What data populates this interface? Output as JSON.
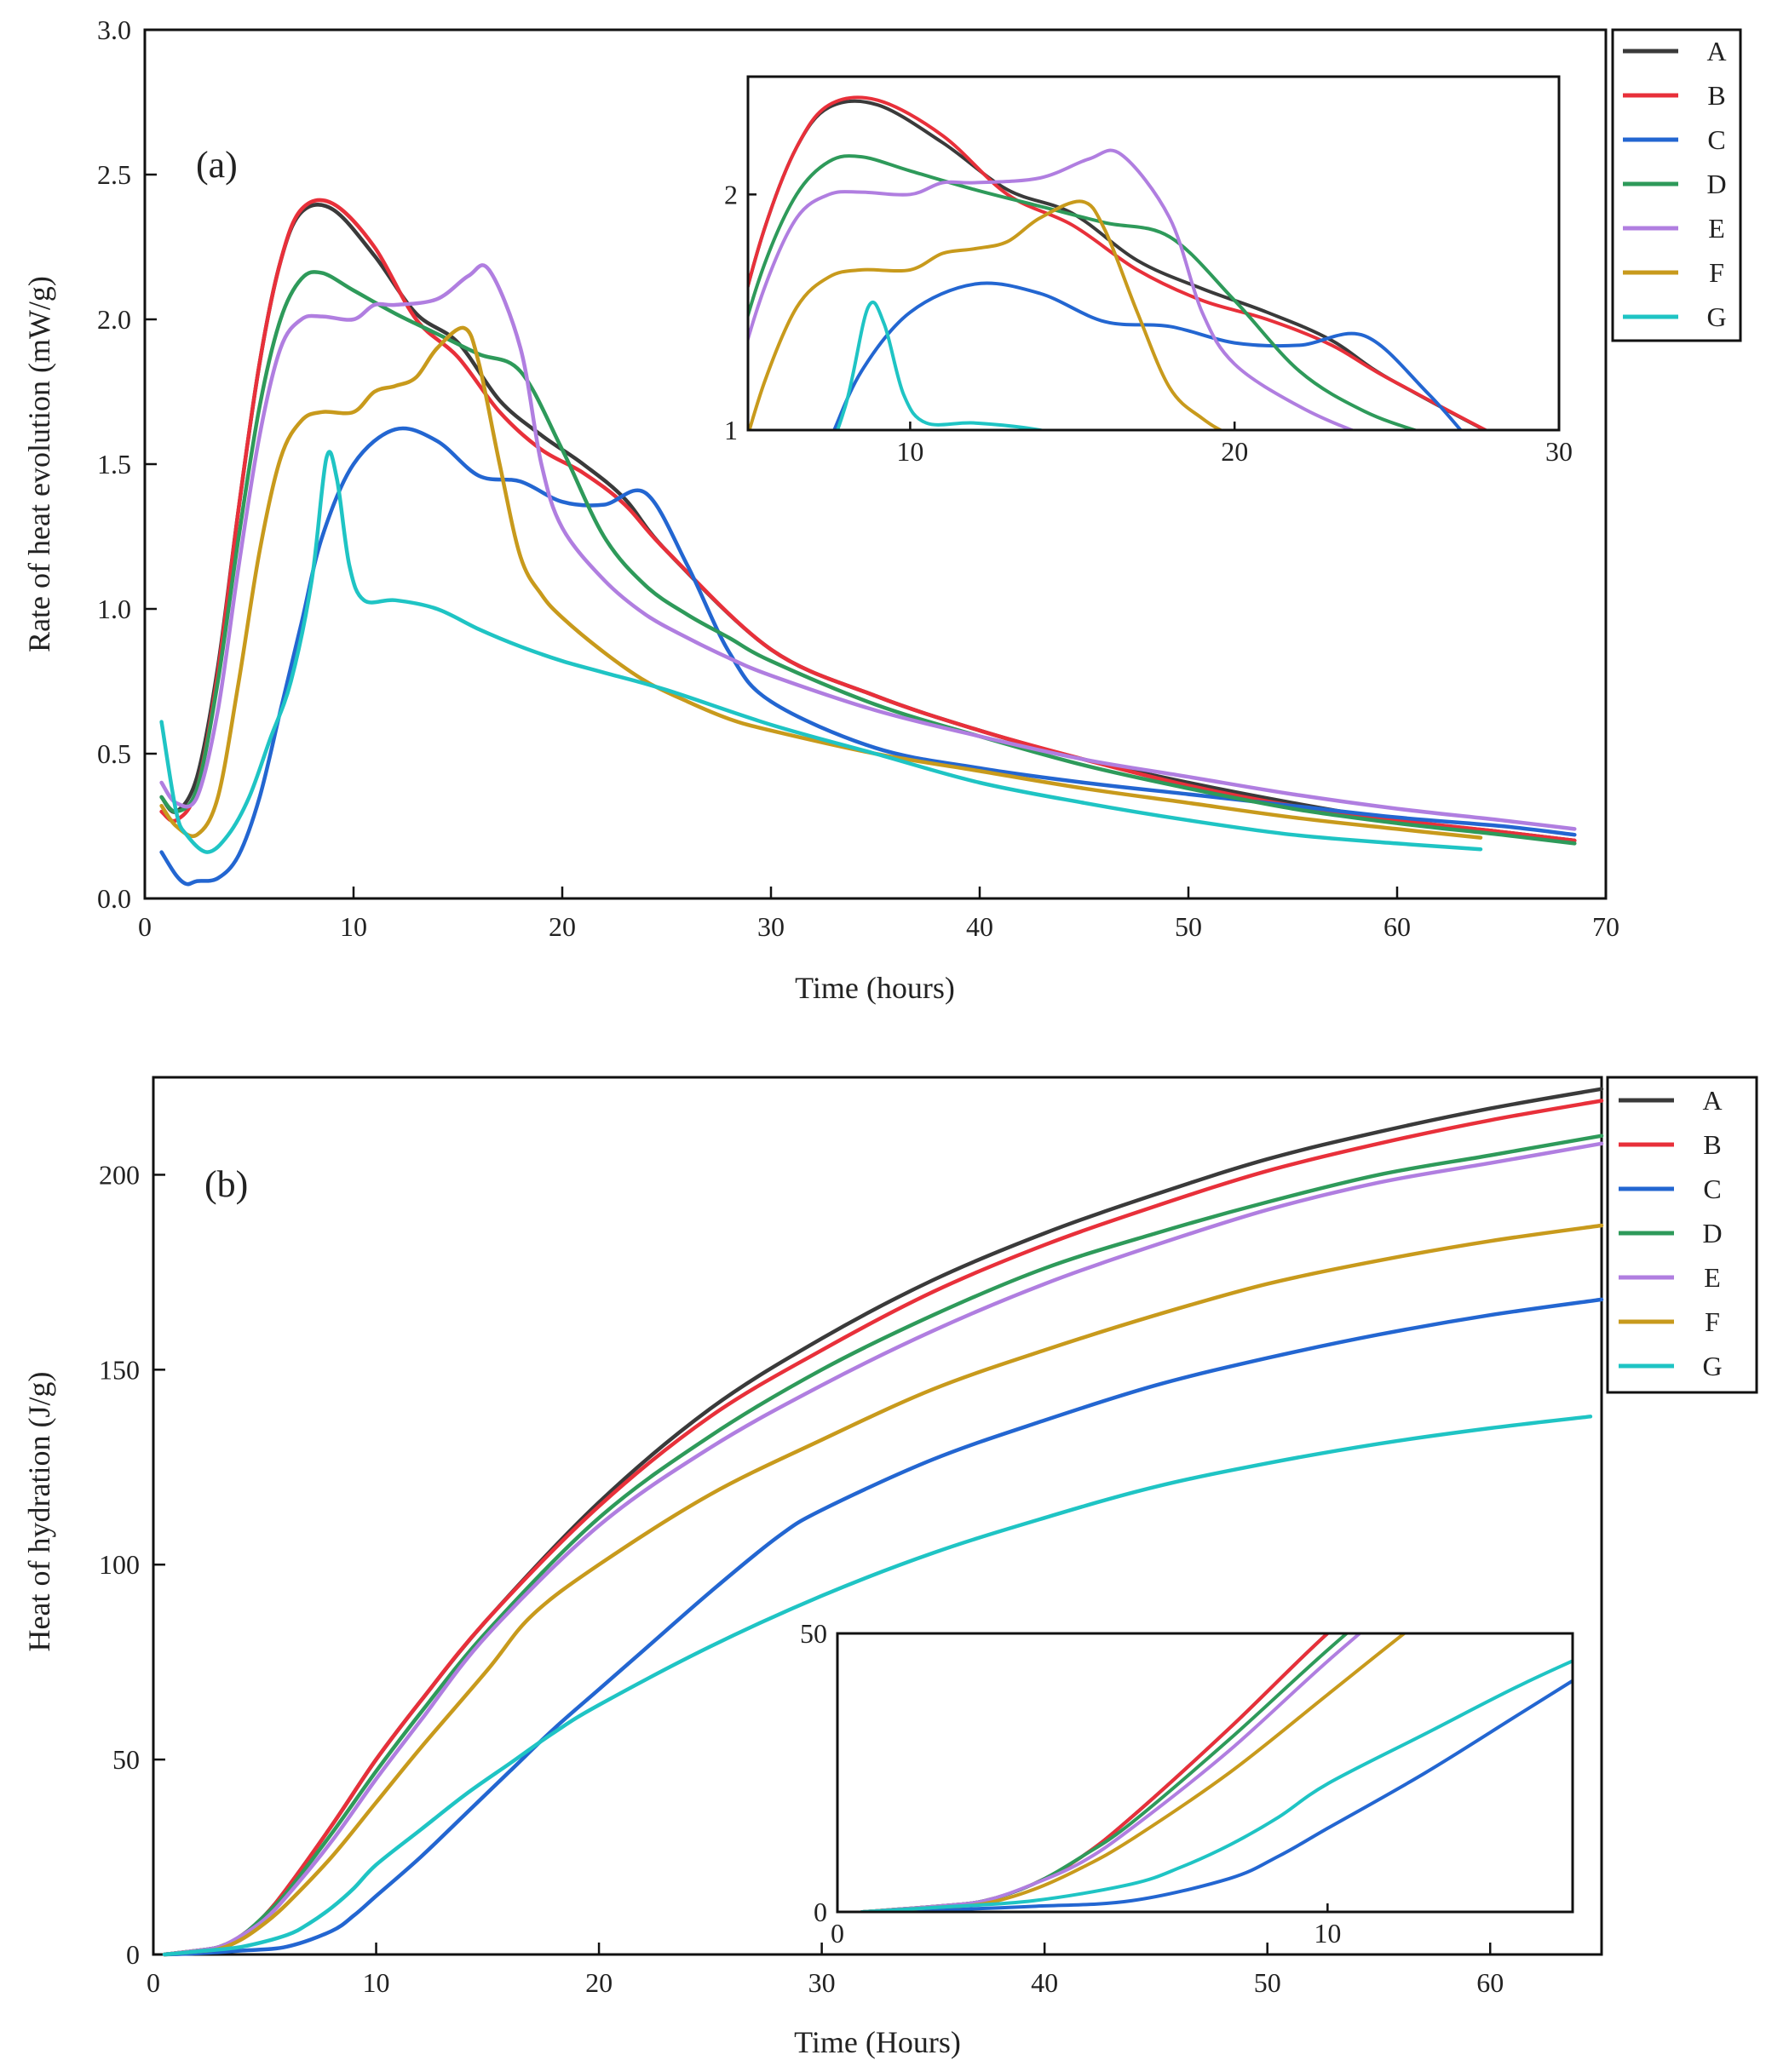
{
  "colors": {
    "A": "#3a3a3a",
    "B": "#e8303a",
    "C": "#2366d1",
    "D": "#2e9a5a",
    "E": "#b07ee0",
    "F": "#c89a1c",
    "G": "#1fc4c4"
  },
  "chart_data": [
    {
      "type": "line",
      "panel": "(a)",
      "xlabel": "Time (hours)",
      "ylabel": "Rate of heat evolution (mW/g)",
      "xlim": [
        0,
        70
      ],
      "ylim": [
        0,
        3.0
      ],
      "xticks": [
        "0",
        "10",
        "20",
        "30",
        "40",
        "50",
        "60",
        "70"
      ],
      "yticks": [
        "0.0",
        "0.5",
        "1.0",
        "1.5",
        "2.0",
        "2.5",
        "3.0"
      ],
      "legend": {
        "placement": "right-top-outside",
        "labels": [
          "A",
          "B",
          "C",
          "D",
          "E",
          "F",
          "G"
        ]
      },
      "series": [
        {
          "name": "A",
          "x": [
            0.8,
            1.5,
            2.5,
            3.5,
            4.5,
            5.5,
            6.5,
            7.5,
            9,
            11,
            13,
            15,
            17,
            19,
            21,
            23,
            25,
            30,
            35,
            40,
            45,
            50,
            55,
            60,
            65,
            68.5
          ],
          "y": [
            0.35,
            0.3,
            0.42,
            0.8,
            1.35,
            1.85,
            2.2,
            2.37,
            2.38,
            2.22,
            2.02,
            1.92,
            1.72,
            1.6,
            1.5,
            1.38,
            1.2,
            0.86,
            0.7,
            0.58,
            0.48,
            0.4,
            0.33,
            0.27,
            0.23,
            0.2
          ]
        },
        {
          "name": "B",
          "x": [
            0.8,
            1.5,
            2.5,
            3.5,
            4.5,
            5.5,
            6.5,
            7.5,
            9,
            11,
            13,
            15,
            17,
            19,
            21,
            23,
            25,
            30,
            35,
            40,
            45,
            50,
            55,
            60,
            65,
            68.5
          ],
          "y": [
            0.3,
            0.27,
            0.38,
            0.78,
            1.35,
            1.85,
            2.2,
            2.38,
            2.4,
            2.25,
            2.0,
            1.87,
            1.68,
            1.55,
            1.47,
            1.36,
            1.2,
            0.86,
            0.7,
            0.58,
            0.48,
            0.39,
            0.32,
            0.27,
            0.23,
            0.2
          ]
        },
        {
          "name": "C",
          "x": [
            0.8,
            1.5,
            2.0,
            2.5,
            3.5,
            4.5,
            5.5,
            6.5,
            7.5,
            8.5,
            10,
            12,
            14,
            16,
            18,
            20,
            22,
            24,
            26,
            28,
            30,
            35,
            40,
            45,
            50,
            55,
            60,
            65,
            68.5
          ],
          "y": [
            0.16,
            0.08,
            0.05,
            0.06,
            0.07,
            0.15,
            0.35,
            0.65,
            0.95,
            1.25,
            1.5,
            1.62,
            1.58,
            1.46,
            1.44,
            1.37,
            1.36,
            1.4,
            1.15,
            0.85,
            0.68,
            0.52,
            0.45,
            0.4,
            0.36,
            0.32,
            0.28,
            0.25,
            0.22
          ]
        },
        {
          "name": "D",
          "x": [
            0.8,
            1.5,
            2.5,
            3.5,
            4.5,
            5.5,
            6.5,
            7.5,
            8.5,
            10,
            12,
            14,
            16,
            18,
            20,
            22,
            24,
            26,
            28,
            30,
            35,
            40,
            45,
            50,
            55,
            60,
            65,
            68.5
          ],
          "y": [
            0.35,
            0.3,
            0.38,
            0.75,
            1.25,
            1.7,
            2.0,
            2.14,
            2.16,
            2.1,
            2.02,
            1.95,
            1.88,
            1.82,
            1.55,
            1.25,
            1.08,
            0.98,
            0.9,
            0.82,
            0.67,
            0.56,
            0.46,
            0.38,
            0.31,
            0.26,
            0.22,
            0.19
          ]
        },
        {
          "name": "E",
          "x": [
            0.8,
            1.5,
            2.5,
            3.5,
            4.5,
            5.5,
            6.5,
            7.5,
            8.5,
            10,
            11,
            12,
            14,
            15.5,
            16.5,
            18,
            19,
            20,
            22,
            24,
            26,
            28,
            30,
            35,
            40,
            45,
            50,
            55,
            60,
            65,
            68.5
          ],
          "y": [
            0.4,
            0.33,
            0.35,
            0.65,
            1.15,
            1.6,
            1.9,
            2.0,
            2.01,
            2.0,
            2.05,
            2.05,
            2.07,
            2.15,
            2.17,
            1.9,
            1.5,
            1.28,
            1.1,
            0.98,
            0.9,
            0.83,
            0.77,
            0.65,
            0.56,
            0.48,
            0.42,
            0.36,
            0.31,
            0.27,
            0.24
          ]
        },
        {
          "name": "F",
          "x": [
            0.8,
            1.5,
            2.5,
            3.5,
            4.5,
            5.5,
            6.5,
            7.5,
            8.5,
            10,
            11,
            12,
            13,
            14,
            15.3,
            16,
            17,
            18,
            19,
            20,
            22,
            24,
            26,
            28,
            30,
            35,
            40,
            45,
            50,
            55,
            60,
            64
          ],
          "y": [
            0.32,
            0.25,
            0.22,
            0.35,
            0.75,
            1.2,
            1.52,
            1.65,
            1.68,
            1.68,
            1.75,
            1.77,
            1.8,
            1.9,
            1.97,
            1.85,
            1.5,
            1.18,
            1.05,
            0.97,
            0.85,
            0.75,
            0.68,
            0.62,
            0.58,
            0.5,
            0.44,
            0.38,
            0.33,
            0.28,
            0.24,
            0.21
          ]
        },
        {
          "name": "G",
          "x": [
            0.8,
            1.5,
            2.0,
            3.0,
            4.0,
            5.0,
            6.0,
            7.0,
            8.0,
            8.7,
            9.2,
            9.8,
            10.5,
            12,
            14,
            16,
            18,
            20,
            22,
            25,
            30,
            35,
            40,
            45,
            50,
            55,
            60,
            64
          ],
          "y": [
            0.61,
            0.3,
            0.22,
            0.16,
            0.22,
            0.35,
            0.55,
            0.75,
            1.1,
            1.52,
            1.45,
            1.15,
            1.03,
            1.03,
            1.0,
            0.93,
            0.87,
            0.82,
            0.78,
            0.72,
            0.6,
            0.5,
            0.4,
            0.33,
            0.27,
            0.22,
            0.19,
            0.17
          ]
        }
      ],
      "inset": {
        "xlim": [
          5,
          30
        ],
        "ylim": [
          1,
          2.5
        ],
        "xticks": [
          "10",
          "20",
          "30"
        ],
        "yticks": [
          "1",
          "2"
        ]
      }
    },
    {
      "type": "line",
      "panel": "(b)",
      "xlabel": "Time (Hours)",
      "ylabel": "Heat of hydration (J/g)",
      "xlim": [
        0,
        65
      ],
      "ylim": [
        0,
        225
      ],
      "xticks": [
        "0",
        "10",
        "20",
        "30",
        "40",
        "50",
        "60"
      ],
      "yticks": [
        "0",
        "50",
        "100",
        "150",
        "200"
      ],
      "legend": {
        "placement": "right-top-outside",
        "labels": [
          "A",
          "B",
          "C",
          "D",
          "E",
          "F",
          "G"
        ]
      },
      "series": [
        {
          "name": "A",
          "x": [
            0.5,
            2,
            3,
            4,
            5,
            6,
            8,
            10,
            12,
            15,
            20,
            25,
            30,
            35,
            40,
            45,
            50,
            55,
            60,
            65
          ],
          "y": [
            0,
            1,
            2,
            5,
            10,
            17,
            33,
            50,
            65,
            86,
            116,
            140,
            158,
            173,
            185,
            195,
            204,
            211,
            217,
            222
          ]
        },
        {
          "name": "B",
          "x": [
            0.5,
            2,
            3,
            4,
            5,
            6,
            8,
            10,
            12,
            15,
            20,
            25,
            30,
            35,
            40,
            45,
            50,
            55,
            60,
            65
          ],
          "y": [
            0,
            1,
            2,
            5,
            10,
            17,
            33,
            50,
            65,
            86,
            115,
            138,
            155,
            170,
            182,
            192,
            201,
            208,
            214,
            219
          ]
        },
        {
          "name": "C",
          "x": [
            0.5,
            2,
            4,
            6,
            8,
            9,
            10,
            12,
            14,
            16,
            18,
            20,
            22,
            25,
            28,
            30,
            35,
            40,
            45,
            50,
            55,
            60,
            65
          ],
          "y": [
            0,
            0.3,
            1,
            2,
            6,
            10,
            15,
            25,
            36,
            47,
            58,
            68,
            78,
            93,
            107,
            114,
            127,
            137,
            146,
            153,
            159,
            164,
            168
          ]
        },
        {
          "name": "D",
          "x": [
            0.5,
            2,
            3,
            4,
            5,
            6,
            8,
            10,
            12,
            15,
            20,
            25,
            30,
            35,
            40,
            45,
            50,
            55,
            60,
            65
          ],
          "y": [
            0,
            1,
            2,
            5,
            10,
            16,
            31,
            47,
            62,
            83,
            112,
            133,
            150,
            164,
            176,
            185,
            193,
            200,
            205,
            210
          ]
        },
        {
          "name": "E",
          "x": [
            0.5,
            2,
            3,
            4,
            5,
            6,
            8,
            10,
            12,
            15,
            20,
            25,
            30,
            35,
            40,
            45,
            50,
            55,
            60,
            65
          ],
          "y": [
            0,
            1,
            2,
            5,
            9,
            15,
            29,
            45,
            60,
            82,
            110,
            130,
            146,
            160,
            172,
            182,
            191,
            198,
            203,
            208
          ]
        },
        {
          "name": "F",
          "x": [
            0.5,
            2,
            3,
            4,
            5,
            6,
            8,
            10,
            12,
            15,
            17,
            20,
            25,
            30,
            35,
            40,
            45,
            50,
            55,
            60,
            65
          ],
          "y": [
            0,
            0.8,
            1.5,
            4,
            8,
            13,
            25,
            39,
            53,
            73,
            87,
            100,
            118,
            132,
            145,
            155,
            164,
            172,
            178,
            183,
            187
          ]
        },
        {
          "name": "G",
          "x": [
            0.5,
            2,
            4,
            6,
            7,
            8,
            9,
            10,
            12,
            14,
            16,
            18,
            20,
            25,
            30,
            35,
            40,
            45,
            50,
            55,
            60,
            64.5
          ],
          "y": [
            0,
            0.8,
            2,
            5,
            8,
            12,
            17,
            23,
            32,
            41,
            49,
            57,
            64,
            79,
            92,
            103,
            112,
            120,
            126,
            131,
            135,
            138
          ]
        }
      ],
      "inset": {
        "xlim": [
          0,
          15
        ],
        "ylim": [
          0,
          50
        ],
        "xticks": [
          "0",
          "10"
        ],
        "yticks": [
          "0",
          "50"
        ]
      }
    }
  ]
}
